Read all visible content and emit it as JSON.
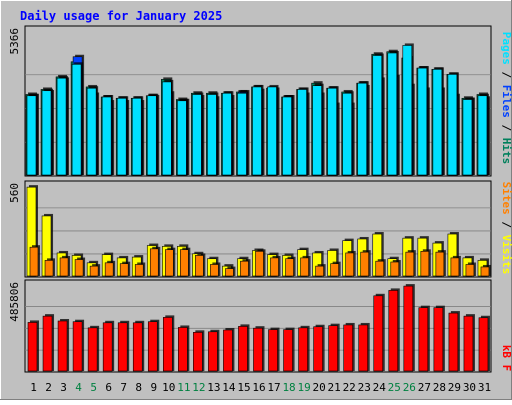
{
  "title": "Daily usage for January 2025",
  "colors": {
    "background": "#c0c0c0",
    "frame_light": "#ffffff",
    "frame_dark": "#808080",
    "title": "#0000ff",
    "hits": "#00805c",
    "files": "#0040ff",
    "pages": "#00e0ff",
    "visits": "#ffff00",
    "sites": "#ff8000",
    "kbytes": "#ff0000",
    "weekday_label": "#000000",
    "weekend_label": "#008040"
  },
  "legend_top": {
    "pages": "Pages",
    "sep1": "/",
    "files": "Files",
    "sep2": "/",
    "hits": "Hits"
  },
  "legend_mid": {
    "sites": "Sites",
    "sep": "/",
    "visits": "Visits"
  },
  "legend_bottom": {
    "kbytes": "kB F"
  },
  "chart_data": [
    {
      "type": "bar",
      "panel": "hits-files-pages",
      "categories": [
        "1",
        "2",
        "3",
        "4",
        "5",
        "6",
        "7",
        "8",
        "9",
        "10",
        "11",
        "12",
        "13",
        "14",
        "15",
        "16",
        "17",
        "18",
        "19",
        "20",
        "21",
        "22",
        "23",
        "24",
        "25",
        "26",
        "27",
        "28",
        "29",
        "30",
        "31"
      ],
      "ymax_label": "5366",
      "ylim": [
        0,
        5366
      ],
      "series": [
        {
          "name": "Hits",
          "values": [
            3200,
            3400,
            3900,
            4500,
            3500,
            3100,
            3050,
            3050,
            3150,
            3800,
            3000,
            3250,
            3250,
            3250,
            3300,
            3500,
            3450,
            3100,
            3400,
            3650,
            3450,
            3300,
            3650,
            4800,
            4900,
            4650,
            4250,
            4200,
            4000,
            3050,
            3200
          ]
        },
        {
          "name": "Files",
          "values": [
            3150,
            3300,
            3800,
            4700,
            3200,
            2900,
            2900,
            2900,
            3100,
            3250,
            2950,
            3100,
            3050,
            3100,
            3300,
            3350,
            3400,
            3100,
            3200,
            3200,
            2800,
            2800,
            3500,
            3800,
            3900,
            3550,
            3400,
            3400,
            3150,
            3000,
            3050
          ]
        },
        {
          "name": "Pages",
          "values": [
            3150,
            3350,
            3850,
            4400,
            3450,
            3100,
            3050,
            3050,
            3150,
            3700,
            2950,
            3200,
            3200,
            3250,
            3250,
            3500,
            3500,
            3100,
            3400,
            3550,
            3450,
            3250,
            3650,
            4750,
            4850,
            5150,
            4250,
            4200,
            4000,
            3000,
            3150
          ]
        }
      ]
    },
    {
      "type": "bar",
      "panel": "visits-sites",
      "categories": [
        "1",
        "2",
        "3",
        "4",
        "5",
        "6",
        "7",
        "8",
        "9",
        "10",
        "11",
        "12",
        "13",
        "14",
        "15",
        "16",
        "17",
        "18",
        "19",
        "20",
        "21",
        "22",
        "23",
        "24",
        "25",
        "26",
        "27",
        "28",
        "29",
        "30",
        "31"
      ],
      "ymax_label": "560",
      "ylim": [
        0,
        560
      ],
      "series": [
        {
          "name": "Visits",
          "values": [
            540,
            365,
            140,
            125,
            80,
            130,
            110,
            115,
            185,
            180,
            180,
            135,
            105,
            60,
            105,
            155,
            130,
            125,
            160,
            140,
            155,
            215,
            225,
            255,
            105,
            230,
            230,
            200,
            255,
            110,
            95
          ]
        },
        {
          "name": "Sites",
          "values": [
            175,
            95,
            110,
            100,
            60,
            80,
            75,
            70,
            165,
            160,
            160,
            125,
            70,
            45,
            90,
            150,
            110,
            105,
            110,
            60,
            75,
            140,
            145,
            90,
            85,
            145,
            150,
            145,
            110,
            70,
            55
          ]
        }
      ]
    },
    {
      "type": "bar",
      "panel": "kbytes",
      "categories": [
        "1",
        "2",
        "3",
        "4",
        "5",
        "6",
        "7",
        "8",
        "9",
        "10",
        "11",
        "12",
        "13",
        "14",
        "15",
        "16",
        "17",
        "18",
        "19",
        "20",
        "21",
        "22",
        "23",
        "24",
        "25",
        "26",
        "27",
        "28",
        "29",
        "30",
        "31"
      ],
      "ymax_label": "485806",
      "ylim": [
        0,
        485806
      ],
      "series": [
        {
          "name": "kB F",
          "values": [
            270000,
            305000,
            278000,
            274000,
            240000,
            268000,
            268000,
            268000,
            274000,
            298000,
            242000,
            215000,
            218000,
            228000,
            248000,
            238000,
            230000,
            230000,
            240000,
            246000,
            252000,
            256000,
            256000,
            418000,
            448000,
            472000,
            352000,
            352000,
            322000,
            305000,
            296000
          ]
        }
      ]
    }
  ]
}
